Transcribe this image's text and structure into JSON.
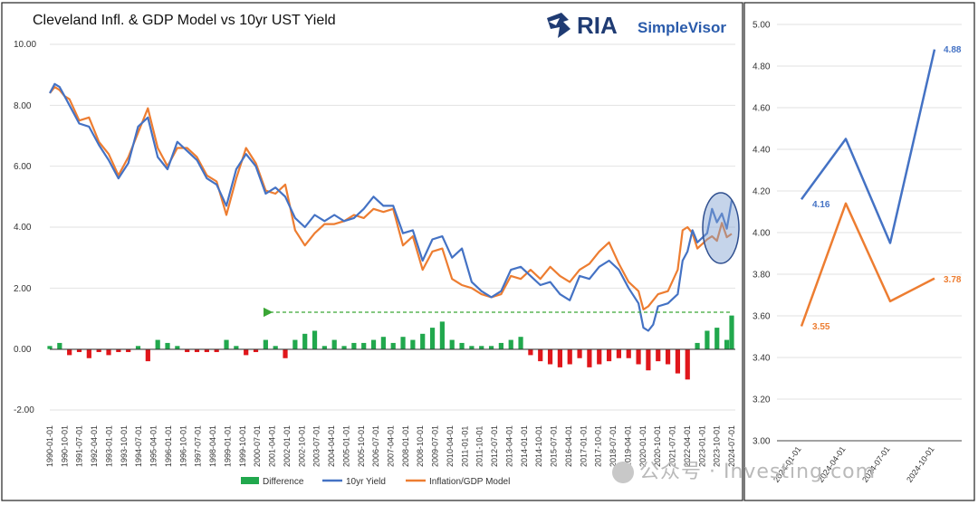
{
  "left_chart": {
    "title": "Cleveland Infl. & GDP Model vs 10yr UST Yield",
    "brand": {
      "name": "RIA",
      "product": "SimpleVisor",
      "logo_icon": "eagle-logo-icon"
    },
    "legend": [
      "Difference",
      "10yr Yield",
      "Inflation/GDP Model"
    ],
    "x_tick_labels": [
      "1990-01-01",
      "1990-10-01",
      "1991-07-01",
      "1992-04-01",
      "1993-01-01",
      "1993-10-01",
      "1994-07-01",
      "1995-04-01",
      "1996-01-01",
      "1996-10-01",
      "1997-07-01",
      "1998-04-01",
      "1999-01-01",
      "1999-10-01",
      "2000-07-01",
      "2001-04-01",
      "2002-01-01",
      "2002-10-01",
      "2003-07-01",
      "2004-04-01",
      "2005-01-01",
      "2005-10-01",
      "2006-07-01",
      "2007-04-01",
      "2008-01-01",
      "2008-10-01",
      "2009-07-01",
      "2010-04-01",
      "2011-01-01",
      "2011-10-01",
      "2012-07-01",
      "2013-04-01",
      "2014-01-01",
      "2014-10-01",
      "2015-07-01",
      "2016-04-01",
      "2017-01-01",
      "2017-10-01",
      "2018-07-01",
      "2019-04-01",
      "2020-01-01",
      "2020-10-01",
      "2021-07-01",
      "2022-04-01",
      "2023-01-01",
      "2023-10-01",
      "2024-07-01"
    ],
    "y_tick_labels": [
      "10.00",
      "8.00",
      "6.00",
      "4.00",
      "2.00",
      "0.00",
      "-2.00"
    ]
  },
  "right_chart": {
    "y_tick_labels": [
      "5.00",
      "4.80",
      "4.60",
      "4.40",
      "4.20",
      "4.00",
      "3.80",
      "3.60",
      "3.40",
      "3.20",
      "3.00"
    ],
    "x_tick_labels": [
      "2024-01-01",
      "2024-04-01",
      "2024-07-01",
      "2024-10-01"
    ],
    "labels": {
      "yield_start": "4.16",
      "yield_end": "4.88",
      "model_start": "3.55",
      "model_end": "3.78"
    }
  },
  "watermark": {
    "text": "公众号 · Investing.com"
  },
  "chart_data": [
    {
      "type": "line",
      "title": "Cleveland Infl. & GDP Model vs 10yr UST Yield",
      "x_range": [
        "1990-01-01",
        "2024-10-01"
      ],
      "ylim": [
        -2,
        10
      ],
      "grid": true,
      "legend_placement": "bottom",
      "colors": {
        "yield": "#4472c4",
        "model": "#ed7d31",
        "diff_pos": "#21a84d",
        "diff_neg": "#e0161b",
        "arrow": "#3aa635",
        "ellipse": "#2f4f8f"
      },
      "series": [
        {
          "name": "10yr Yield",
          "x": [
            1990.0,
            1990.25,
            1990.5,
            1990.75,
            1991.0,
            1991.5,
            1992.0,
            1992.5,
            1993.0,
            1993.5,
            1994.0,
            1994.5,
            1995.0,
            1995.5,
            1996.0,
            1996.5,
            1997.0,
            1997.5,
            1998.0,
            1998.5,
            1999.0,
            1999.5,
            2000.0,
            2000.5,
            2001.0,
            2001.5,
            2002.0,
            2002.5,
            2003.0,
            2003.5,
            2004.0,
            2004.5,
            2005.0,
            2005.5,
            2006.0,
            2006.5,
            2007.0,
            2007.5,
            2008.0,
            2008.5,
            2009.0,
            2009.5,
            2010.0,
            2010.5,
            2011.0,
            2011.5,
            2012.0,
            2012.5,
            2013.0,
            2013.5,
            2014.0,
            2014.5,
            2015.0,
            2015.5,
            2016.0,
            2016.5,
            2017.0,
            2017.5,
            2018.0,
            2018.5,
            2019.0,
            2019.5,
            2020.0,
            2020.25,
            2020.5,
            2020.75,
            2021.0,
            2021.5,
            2022.0,
            2022.25,
            2022.5,
            2022.75,
            2023.0,
            2023.5,
            2023.75,
            2024.0,
            2024.25,
            2024.5,
            2024.75
          ],
          "values": [
            8.4,
            8.7,
            8.6,
            8.3,
            8.0,
            7.4,
            7.3,
            6.7,
            6.2,
            5.6,
            6.1,
            7.3,
            7.6,
            6.3,
            5.9,
            6.8,
            6.5,
            6.2,
            5.6,
            5.4,
            4.7,
            5.9,
            6.4,
            6.0,
            5.1,
            5.3,
            5.0,
            4.3,
            4.0,
            4.4,
            4.2,
            4.4,
            4.2,
            4.3,
            4.6,
            5.0,
            4.7,
            4.7,
            3.8,
            3.9,
            2.9,
            3.6,
            3.7,
            3.0,
            3.3,
            2.2,
            1.9,
            1.7,
            1.9,
            2.6,
            2.7,
            2.4,
            2.1,
            2.2,
            1.8,
            1.6,
            2.4,
            2.3,
            2.7,
            2.9,
            2.6,
            2.0,
            1.5,
            0.7,
            0.6,
            0.8,
            1.4,
            1.5,
            1.8,
            2.9,
            3.2,
            3.9,
            3.5,
            3.8,
            4.6,
            4.16,
            4.45,
            3.95,
            4.88
          ]
        },
        {
          "name": "Inflation/GDP Model",
          "x": [
            1990.0,
            1990.25,
            1990.5,
            1990.75,
            1991.0,
            1991.5,
            1992.0,
            1992.5,
            1993.0,
            1993.5,
            1994.0,
            1994.5,
            1995.0,
            1995.5,
            1996.0,
            1996.5,
            1997.0,
            1997.5,
            1998.0,
            1998.5,
            1999.0,
            1999.5,
            2000.0,
            2000.5,
            2001.0,
            2001.5,
            2002.0,
            2002.5,
            2003.0,
            2003.5,
            2004.0,
            2004.5,
            2005.0,
            2005.5,
            2006.0,
            2006.5,
            2007.0,
            2007.5,
            2008.0,
            2008.5,
            2009.0,
            2009.5,
            2010.0,
            2010.5,
            2011.0,
            2011.5,
            2012.0,
            2012.5,
            2013.0,
            2013.5,
            2014.0,
            2014.5,
            2015.0,
            2015.5,
            2016.0,
            2016.5,
            2017.0,
            2017.5,
            2018.0,
            2018.5,
            2019.0,
            2019.5,
            2020.0,
            2020.25,
            2020.5,
            2020.75,
            2021.0,
            2021.5,
            2022.0,
            2022.25,
            2022.5,
            2022.75,
            2023.0,
            2023.5,
            2023.75,
            2024.0,
            2024.25,
            2024.5,
            2024.75
          ],
          "values": [
            8.4,
            8.6,
            8.5,
            8.3,
            8.2,
            7.5,
            7.6,
            6.8,
            6.4,
            5.7,
            6.3,
            7.1,
            7.9,
            6.6,
            6.0,
            6.6,
            6.6,
            6.3,
            5.7,
            5.5,
            4.4,
            5.6,
            6.6,
            6.1,
            5.2,
            5.1,
            5.4,
            3.9,
            3.4,
            3.8,
            4.1,
            4.1,
            4.2,
            4.4,
            4.3,
            4.6,
            4.5,
            4.6,
            3.4,
            3.7,
            2.6,
            3.2,
            3.3,
            2.3,
            2.1,
            2.0,
            1.8,
            1.7,
            1.8,
            2.4,
            2.3,
            2.6,
            2.3,
            2.7,
            2.4,
            2.2,
            2.6,
            2.8,
            3.2,
            3.5,
            2.8,
            2.2,
            1.9,
            1.3,
            1.4,
            1.6,
            1.8,
            1.9,
            2.6,
            3.9,
            4.0,
            3.8,
            3.3,
            3.6,
            3.7,
            3.55,
            4.14,
            3.67,
            3.78
          ]
        },
        {
          "name": "Difference",
          "type": "bar",
          "x": [
            1990.0,
            1990.5,
            1991.0,
            1991.5,
            1992.0,
            1992.5,
            1993.0,
            1993.5,
            1994.0,
            1994.5,
            1995.0,
            1995.5,
            1996.0,
            1996.5,
            1997.0,
            1997.5,
            1998.0,
            1998.5,
            1999.0,
            1999.5,
            2000.0,
            2000.5,
            2001.0,
            2001.5,
            2002.0,
            2002.5,
            2003.0,
            2003.5,
            2004.0,
            2004.5,
            2005.0,
            2005.5,
            2006.0,
            2006.5,
            2007.0,
            2007.5,
            2008.0,
            2008.5,
            2009.0,
            2009.5,
            2010.0,
            2010.5,
            2011.0,
            2011.5,
            2012.0,
            2012.5,
            2013.0,
            2013.5,
            2014.0,
            2014.5,
            2015.0,
            2015.5,
            2016.0,
            2016.5,
            2017.0,
            2017.5,
            2018.0,
            2018.5,
            2019.0,
            2019.5,
            2020.0,
            2020.5,
            2021.0,
            2021.5,
            2022.0,
            2022.5,
            2023.0,
            2023.5,
            2024.0,
            2024.5,
            2024.75
          ],
          "values": [
            0.1,
            0.2,
            -0.2,
            -0.1,
            -0.3,
            -0.1,
            -0.2,
            -0.1,
            -0.1,
            0.1,
            -0.4,
            0.3,
            0.2,
            0.1,
            -0.1,
            -0.1,
            -0.1,
            -0.1,
            0.3,
            0.1,
            -0.2,
            -0.1,
            0.3,
            0.1,
            -0.3,
            0.3,
            0.5,
            0.6,
            0.1,
            0.3,
            0.1,
            0.2,
            0.2,
            0.3,
            0.4,
            0.2,
            0.4,
            0.3,
            0.5,
            0.7,
            0.9,
            0.3,
            0.2,
            0.1,
            0.1,
            0.1,
            0.2,
            0.3,
            0.4,
            -0.2,
            -0.4,
            -0.5,
            -0.6,
            -0.5,
            -0.3,
            -0.6,
            -0.5,
            -0.4,
            -0.3,
            -0.3,
            -0.5,
            -0.7,
            -0.4,
            -0.5,
            -0.8,
            -1.0,
            0.2,
            0.6,
            0.7,
            0.3,
            1.1
          ]
        }
      ],
      "annotations": [
        "dashed green arrow at ~1.2 pointing left from 2024 to 2001",
        "ellipse highlighting 2023–2024 values"
      ]
    },
    {
      "type": "line",
      "categories": [
        "2024-01-01",
        "2024-04-01",
        "2024-07-01",
        "2024-10-01"
      ],
      "ylim": [
        3.0,
        5.0
      ],
      "grid": true,
      "series": [
        {
          "name": "10yr Yield",
          "values": [
            4.16,
            4.45,
            3.95,
            4.88
          ]
        },
        {
          "name": "Inflation/GDP Model",
          "values": [
            3.55,
            4.14,
            3.67,
            3.78
          ]
        }
      ],
      "data_labels": {
        "10yr Yield": [
          "4.16",
          null,
          null,
          "4.88"
        ],
        "Inflation/GDP Model": [
          "3.55",
          null,
          null,
          "3.78"
        ]
      }
    }
  ]
}
